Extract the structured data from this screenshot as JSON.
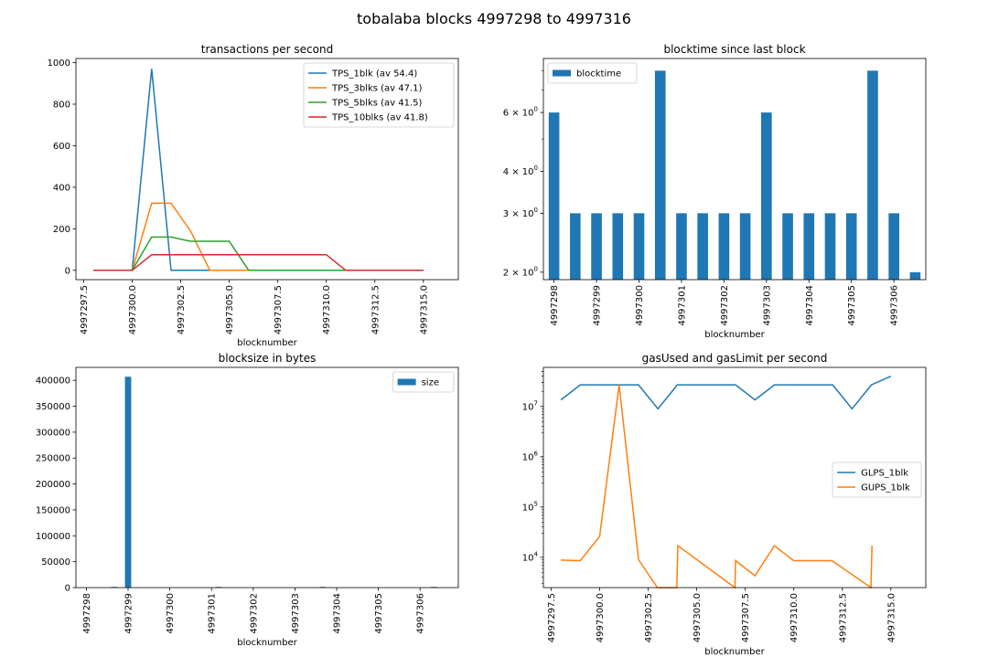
{
  "figure": {
    "title": "tobalaba blocks 4997298 to 4997316"
  },
  "chart_data": [
    {
      "type": "line",
      "title": "transactions per second",
      "xlabel": "blocknumber",
      "ylabel": "",
      "xlim": [
        4997297.1,
        4997316.8
      ],
      "ylim": [
        -45,
        1020
      ],
      "x_ticks": [
        "4997297.5",
        "4997300.0",
        "4997302.5",
        "4997305.0",
        "4997307.5",
        "4997310.0",
        "4997312.5",
        "4997315.0"
      ],
      "y_ticks": [
        "0",
        "200",
        "400",
        "600",
        "800",
        "1000"
      ],
      "legend": "top-right",
      "x": [
        4997298,
        4997299,
        4997300,
        4997301,
        4997302,
        4997303,
        4997304,
        4997305,
        4997306,
        4997307,
        4997308,
        4997309,
        4997310,
        4997311,
        4997312,
        4997313,
        4997314,
        4997315
      ],
      "series": [
        {
          "name": "TPS_1blk (av 54.4)",
          "color": "#1f77b4",
          "values": [
            0,
            0,
            0,
            970,
            0,
            0,
            0,
            0,
            0,
            0,
            0,
            0,
            0,
            0,
            0,
            0,
            0,
            0
          ]
        },
        {
          "name": "TPS_3blks (av 47.1)",
          "color": "#ff7f0e",
          "values": [
            0,
            0,
            0,
            323,
            323,
            190,
            0,
            0,
            0,
            0,
            0,
            0,
            0,
            0,
            0,
            0,
            0,
            0
          ]
        },
        {
          "name": "TPS_5blks (av 41.5)",
          "color": "#2ca02c",
          "values": [
            0,
            0,
            0,
            160,
            160,
            140,
            140,
            140,
            0,
            0,
            0,
            0,
            0,
            0,
            0,
            0,
            0,
            0
          ]
        },
        {
          "name": "TPS_10blks (av 41.8)",
          "color": "#d62728",
          "values": [
            0,
            0,
            0,
            75,
            75,
            75,
            75,
            75,
            75,
            75,
            75,
            75,
            75,
            0,
            0,
            0,
            0,
            0
          ]
        }
      ]
    },
    {
      "type": "bar",
      "title": "blocktime since last block",
      "xlabel": "blocknumber",
      "ylabel": "",
      "yscale": "log",
      "ylim": [
        1.9,
        8.7
      ],
      "y_ticks": [
        {
          "value": 2,
          "base": "2 × 10",
          "exp": "0"
        },
        {
          "value": 3,
          "base": "3 × 10",
          "exp": "0"
        },
        {
          "value": 4,
          "base": "4 × 10",
          "exp": "0"
        },
        {
          "value": 6,
          "base": "6 × 10",
          "exp": "0"
        }
      ],
      "x_ticks": [
        "4997298",
        "4997299",
        "4997300",
        "4997301",
        "4997302",
        "4997303",
        "4997304",
        "4997305",
        "4997306"
      ],
      "legend": "top-left",
      "series": [
        {
          "name": "blocktime",
          "color": "#1f77b4",
          "values": [
            6,
            3,
            3,
            3,
            3,
            8,
            3,
            3,
            3,
            3,
            6,
            3,
            3,
            3,
            3,
            8,
            3,
            2
          ]
        }
      ]
    },
    {
      "type": "bar",
      "title": "blocksize in bytes",
      "xlabel": "blocknumber",
      "ylabel": "",
      "ylim": [
        0,
        425000
      ],
      "y_ticks": [
        "0",
        "50000",
        "100000",
        "150000",
        "200000",
        "250000",
        "300000",
        "350000",
        "400000"
      ],
      "x_ticks": [
        "4997298",
        "4997299",
        "4997300",
        "4997301",
        "4997302",
        "4997303",
        "4997304",
        "4997305",
        "4997306"
      ],
      "legend": "top-right",
      "series": [
        {
          "name": "size",
          "color": "#1f77b4",
          "values": [
            0,
            0,
            0,
            0,
            0,
            1400,
            0,
            407000,
            0,
            0,
            0,
            0,
            0,
            0,
            0,
            0,
            0,
            0,
            0,
            0,
            1400,
            0,
            0,
            0,
            0,
            0,
            0,
            0,
            0,
            0,
            0,
            0,
            0,
            0,
            0,
            1400,
            0,
            0,
            0,
            0,
            0,
            0,
            0,
            0,
            0,
            0,
            0,
            0,
            0,
            0,
            0,
            1400,
            0,
            0,
            0
          ]
        }
      ]
    },
    {
      "type": "line",
      "title": "gasUsed and gasLimit per second",
      "xlabel": "blocknumber",
      "ylabel": "",
      "yscale": "log",
      "xlim": [
        4997297.1,
        4997316.8
      ],
      "ylim": [
        2500,
        60000000
      ],
      "x_ticks": [
        "4997297.5",
        "4997300.0",
        "4997302.5",
        "4997305.0",
        "4997307.5",
        "4997310.0",
        "4997312.5",
        "4997315.0"
      ],
      "y_ticks": [
        {
          "value": 10000,
          "base": "10",
          "exp": "4"
        },
        {
          "value": 100000,
          "base": "10",
          "exp": "5"
        },
        {
          "value": 1000000,
          "base": "10",
          "exp": "6"
        },
        {
          "value": 10000000,
          "base": "10",
          "exp": "7"
        }
      ],
      "legend": "center-right",
      "series": [
        {
          "name": "GLPS_1blk",
          "color": "#1f77b4",
          "x": [
            4997298,
            4997299,
            4997300,
            4997301,
            4997302,
            4997303,
            4997304,
            4997305,
            4997306,
            4997307,
            4997308,
            4997309,
            4997310,
            4997311,
            4997312,
            4997313,
            4997314,
            4997315
          ],
          "values": [
            13500000,
            27000000,
            27000000,
            27000000,
            27000000,
            9000000,
            27000000,
            27000000,
            27000000,
            27000000,
            13500000,
            27000000,
            27000000,
            27000000,
            27000000,
            9000000,
            27000000,
            40000000
          ]
        },
        {
          "name": "GUPS_1blk",
          "color": "#ff7f0e",
          "x": [
            4997298,
            4997299,
            4997300,
            4997301,
            4997302,
            4997302.97,
            4997303.97,
            4997304.03,
            4997306.97,
            4997307,
            4997308,
            4997309,
            4997310,
            4997311,
            4997311.97,
            4997313.97,
            4997314.03
          ],
          "values": [
            8800,
            8600,
            26000,
            27000000,
            9000,
            2500,
            2500,
            17000,
            2500,
            8600,
            4300,
            17000,
            8600,
            8600,
            8600,
            2500,
            17000
          ]
        }
      ]
    }
  ]
}
